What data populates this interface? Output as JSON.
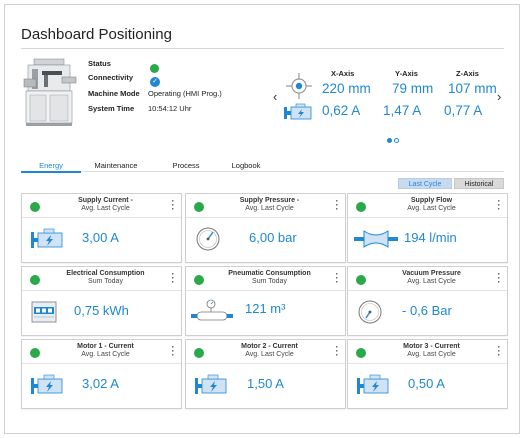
{
  "page": {
    "title": "Dashboard Positioning"
  },
  "status": {
    "labels": {
      "status": "Status",
      "connectivity": "Connectivity",
      "machine_mode": "Machine Mode",
      "system_time": "System Time"
    },
    "machine_mode": "Operating (HMI Prog.)",
    "system_time": "10:54:12 Uhr",
    "connectivity_mark": "✓"
  },
  "axes": [
    {
      "name": "X-Axis",
      "position": "220 mm",
      "current": "0,62 A"
    },
    {
      "name": "Y-Axis",
      "position": "79 mm",
      "current": "1,47 A"
    },
    {
      "name": "Z-Axis",
      "position": "107 mm",
      "current": "0,77 A"
    }
  ],
  "nav": {
    "prev": "‹",
    "next": "›"
  },
  "pager": {
    "pages": 2,
    "active": 1
  },
  "tabs": [
    "Energy",
    "Maintenance",
    "Process",
    "Logbook"
  ],
  "active_tab": "Energy",
  "view_toggle": {
    "last_cycle": "Last Cycle",
    "historical": "Historical",
    "active": "Last Cycle"
  },
  "cards": [
    {
      "title": "Supply Current -",
      "subtitle": "Avg. Last Cycle",
      "value": "3,00 A",
      "icon": "motor-current-icon"
    },
    {
      "title": "Supply Pressure -",
      "subtitle": "Avg. Last Cycle",
      "value": "6,00 bar",
      "icon": "pressure-gauge-icon"
    },
    {
      "title": "Supply Flow",
      "subtitle": "Avg. Last Cycle",
      "value": "194 l/min",
      "icon": "flow-valve-icon"
    },
    {
      "title": "Electrical Consumption",
      "subtitle": "Sum Today",
      "value": "0,75 kWh",
      "icon": "energy-meter-icon"
    },
    {
      "title": "Pneumatic Consumption",
      "subtitle": "Sum Today",
      "value": "121 m³",
      "icon": "air-consumption-icon"
    },
    {
      "title": "Vacuum Pressure",
      "subtitle": "Avg. Last Cycle",
      "value": "- 0,6 Bar",
      "icon": "vacuum-gauge-icon"
    },
    {
      "title": "Motor 1 - Current",
      "subtitle": "Avg. Last Cycle",
      "value": "3,02 A",
      "icon": "motor-current-icon"
    },
    {
      "title": "Motor 2 - Current",
      "subtitle": "Avg. Last Cycle",
      "value": "1,50 A",
      "icon": "motor-current-icon"
    },
    {
      "title": "Motor 3 - Current",
      "subtitle": "Avg. Last Cycle",
      "value": "0,50 A",
      "icon": "motor-current-icon"
    }
  ],
  "colors": {
    "accent": "#1e88d2",
    "status_ok": "#2aa84a",
    "icon_light": "#cfe3f5"
  }
}
